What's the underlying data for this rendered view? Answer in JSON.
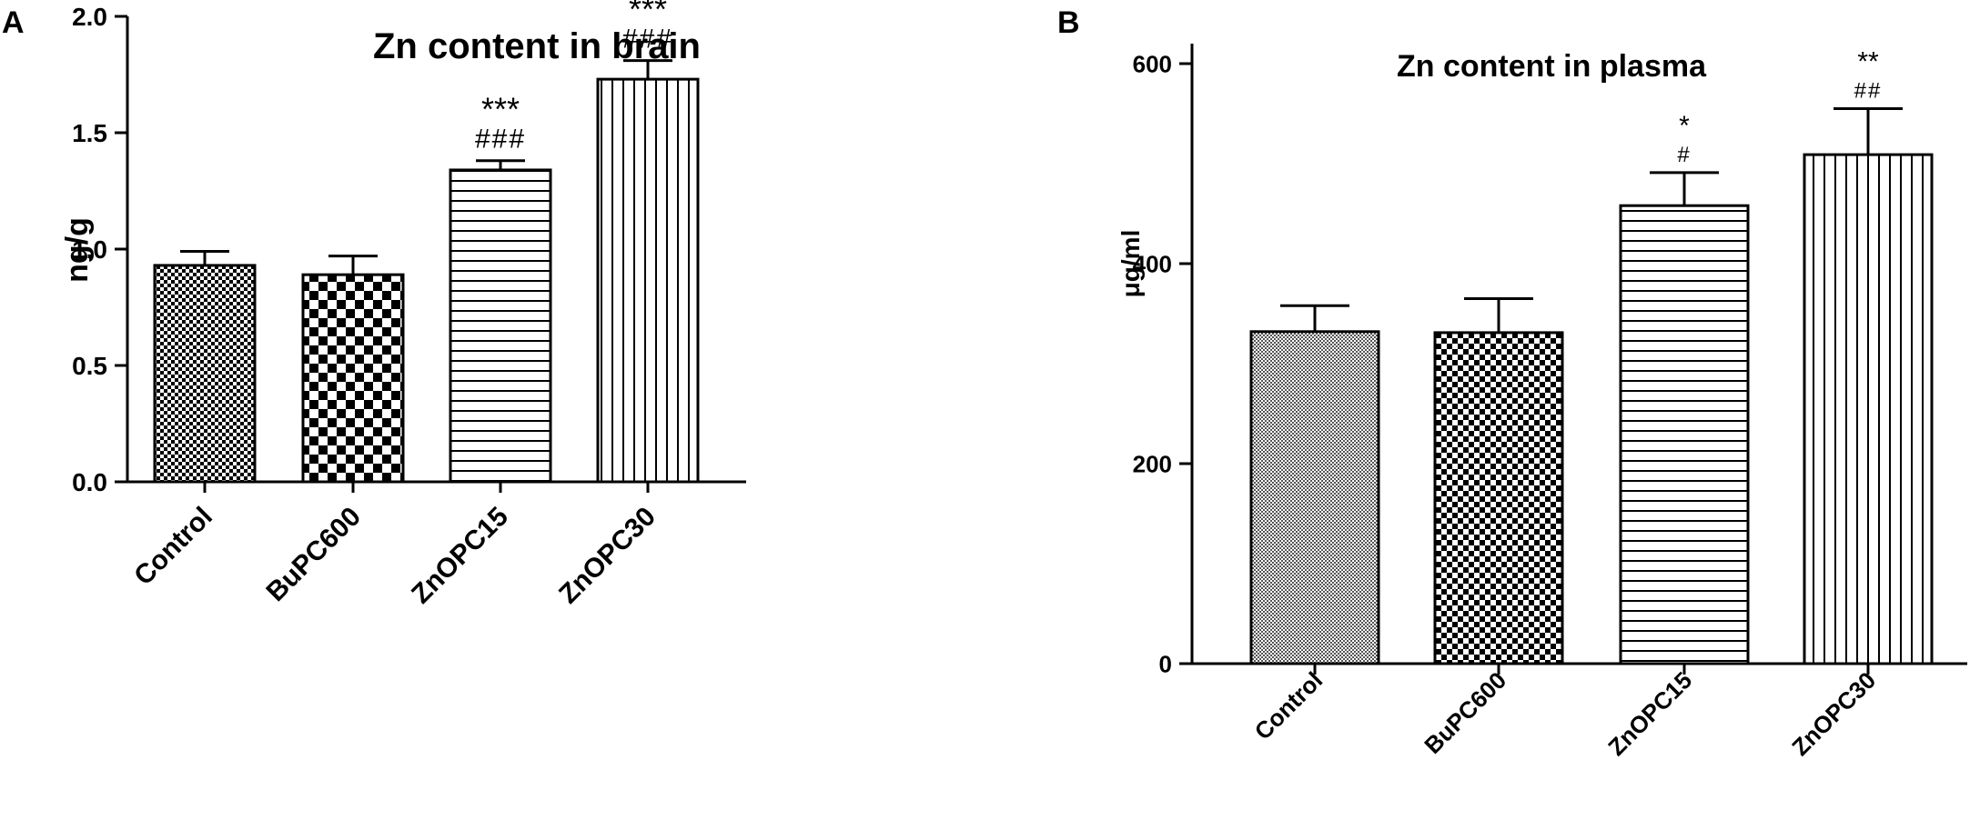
{
  "panels": [
    {
      "panel_label": "A",
      "chart_data": {
        "type": "bar",
        "title": "Zn content in brain",
        "xlabel": "",
        "ylabel": "ng/g",
        "ylim": [
          0,
          2.0
        ],
        "yticks": [
          "0.0",
          "0.5",
          "1.0",
          "1.5",
          "2.0"
        ],
        "categories": [
          "Control",
          "BuPC600",
          "ZnOPC15",
          "ZnOPC30"
        ],
        "values": [
          0.93,
          0.89,
          1.34,
          1.73
        ],
        "errors": [
          0.06,
          0.08,
          0.04,
          0.08
        ],
        "patterns": [
          "fine-checker",
          "coarse-checker",
          "horizontal-lines",
          "vertical-lines"
        ],
        "annotations": [
          [
            "",
            ""
          ],
          [
            "",
            ""
          ],
          [
            "***",
            "###"
          ],
          [
            "***",
            "###"
          ]
        ],
        "grid": false,
        "legend": "none"
      }
    },
    {
      "panel_label": "B",
      "chart_data": {
        "type": "bar",
        "title": "Zn content in plasma",
        "xlabel": "",
        "ylabel": "μg/ml",
        "ylim": [
          0,
          600
        ],
        "yticks": [
          "0",
          "200",
          "400",
          "600"
        ],
        "categories": [
          "Control",
          "BuPC600",
          "ZnOPC15",
          "ZnOPC30"
        ],
        "values": [
          332,
          331,
          458,
          509
        ],
        "errors": [
          26,
          34,
          33,
          46
        ],
        "patterns": [
          "dense-dots",
          "coarse-checker-small",
          "horizontal-lines",
          "vertical-lines"
        ],
        "annotations": [
          [
            "",
            ""
          ],
          [
            "",
            ""
          ],
          [
            "*",
            "#"
          ],
          [
            "**",
            "##"
          ]
        ],
        "grid": false,
        "legend": "none"
      }
    }
  ],
  "colors": {
    "ink": "#000000",
    "background": "#ffffff"
  }
}
